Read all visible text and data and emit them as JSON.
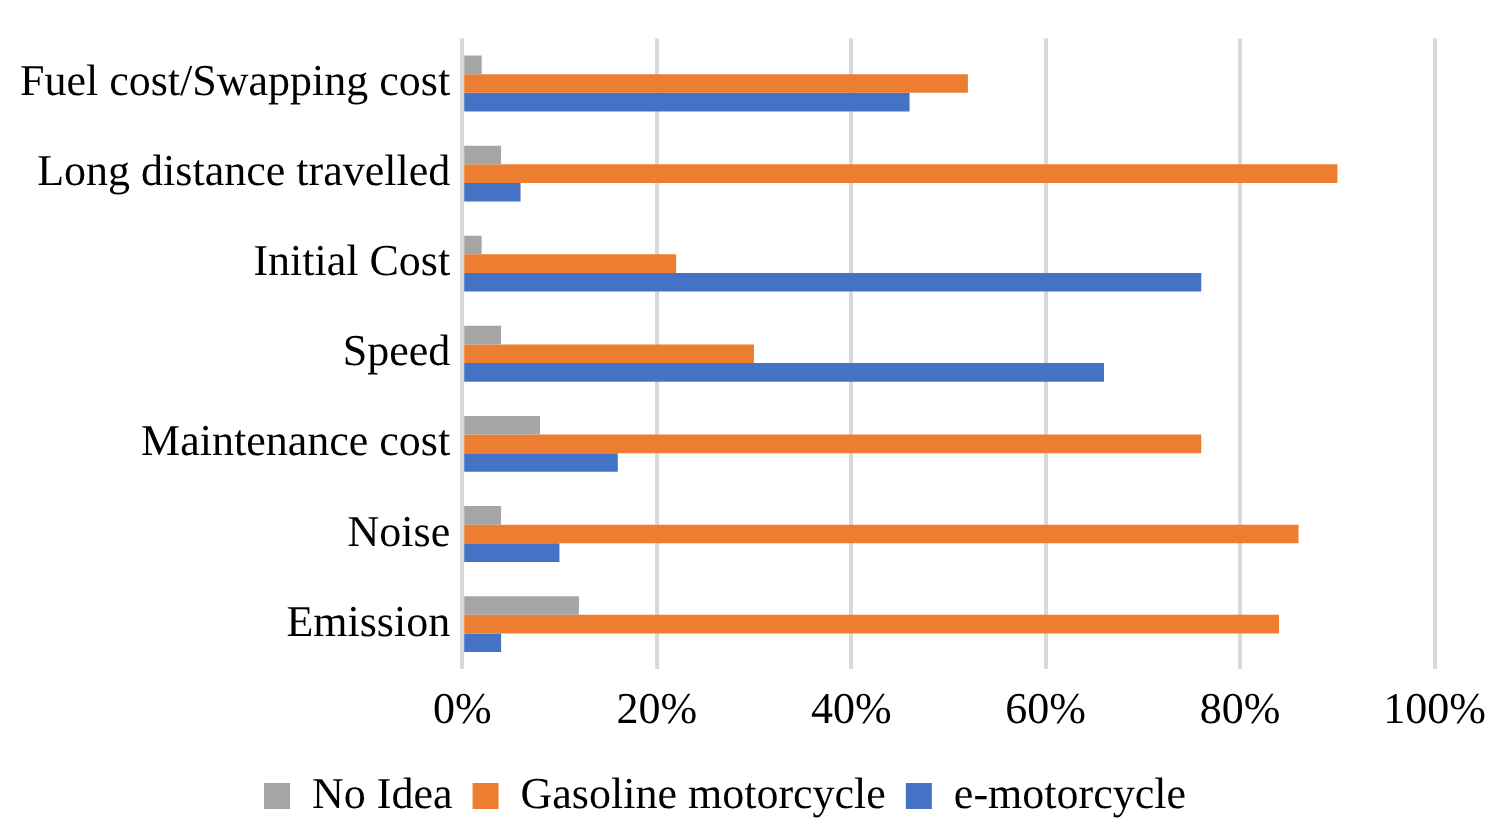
{
  "chart_data": {
    "type": "bar",
    "orientation": "horizontal",
    "categories": [
      "Fuel cost/Swapping cost",
      "Long distance travelled",
      "Initial Cost",
      "Speed",
      "Maintenance cost",
      "Noise",
      "Emission"
    ],
    "series": [
      {
        "name": "No Idea",
        "color": "#a5a5a5",
        "values": [
          2,
          4,
          2,
          4,
          8,
          4,
          12
        ]
      },
      {
        "name": "Gasoline motorcycle",
        "color": "#ed7d31",
        "values": [
          52,
          90,
          22,
          30,
          76,
          86,
          84
        ]
      },
      {
        "name": "e-motorcycle",
        "color": "#4472c4",
        "values": [
          46,
          6,
          76,
          66,
          16,
          10,
          4
        ]
      }
    ],
    "xlim": [
      0,
      100
    ],
    "xticks": [
      {
        "value": 0,
        "label": "0%"
      },
      {
        "value": 20,
        "label": "20%"
      },
      {
        "value": 40,
        "label": "40%"
      },
      {
        "value": 60,
        "label": "60%"
      },
      {
        "value": 80,
        "label": "80%"
      },
      {
        "value": 100,
        "label": "100%"
      }
    ],
    "grid": "x",
    "legend": "bottom"
  }
}
